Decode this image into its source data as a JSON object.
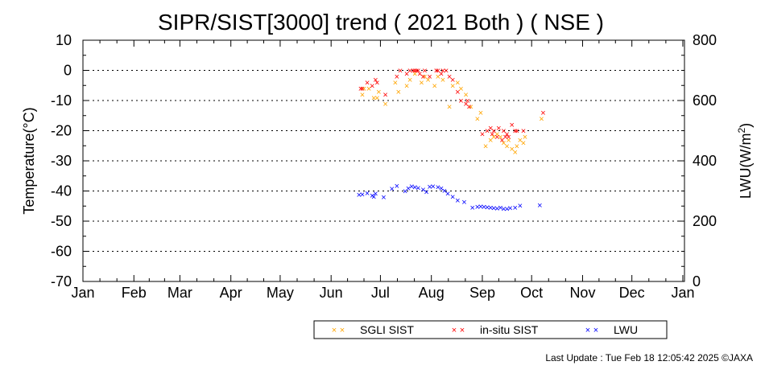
{
  "chart_data": {
    "type": "scatter",
    "title": "SIPR/SIST[3000] trend ( 2021 Both ) ( NSE )",
    "ylabel": "Temperature(°C)",
    "y2label_main": "LWU(W/m",
    "y2label_sup": "2",
    "y2label_end": ")",
    "xlabel": "",
    "ylim": [
      -70,
      10
    ],
    "yticks": [
      10,
      0,
      -10,
      -20,
      -30,
      -40,
      -50,
      -60,
      -70
    ],
    "y2lim": [
      0,
      800
    ],
    "y2ticks": [
      800,
      600,
      400,
      200,
      0
    ],
    "x_range_days": [
      0,
      366
    ],
    "month_labels": [
      "Jan",
      "Feb",
      "Mar",
      "Apr",
      "May",
      "Jun",
      "Jul",
      "Aug",
      "Sep",
      "Oct",
      "Nov",
      "Dec",
      "Jan"
    ],
    "month_days": [
      0,
      31,
      59,
      90,
      120,
      151,
      181,
      212,
      243,
      273,
      304,
      334,
      365
    ],
    "grid": "dotted-horizontal",
    "legend_position": "bottom-right",
    "series": [
      {
        "name": "SGLI SIST",
        "color": "#ffa500",
        "axis": "left",
        "points": [
          [
            170,
            -8
          ],
          [
            171,
            -6
          ],
          [
            174,
            -6
          ],
          [
            177,
            -9
          ],
          [
            179,
            -9
          ],
          [
            180,
            -7
          ],
          [
            184,
            -11
          ],
          [
            190,
            -4
          ],
          [
            192,
            -7
          ],
          [
            197,
            -5
          ],
          [
            199,
            -3
          ],
          [
            202,
            -1
          ],
          [
            206,
            -4
          ],
          [
            208,
            -2
          ],
          [
            210,
            -3
          ],
          [
            214,
            -5
          ],
          [
            216,
            -2
          ],
          [
            219,
            -3
          ],
          [
            223,
            -12
          ],
          [
            225,
            -5
          ],
          [
            228,
            -4
          ],
          [
            230,
            -6
          ],
          [
            233,
            -8
          ],
          [
            236,
            -12
          ],
          [
            240,
            -16
          ],
          [
            242,
            -14
          ],
          [
            245,
            -25
          ],
          [
            248,
            -23
          ],
          [
            250,
            -22
          ],
          [
            252,
            -21
          ],
          [
            254,
            -22
          ],
          [
            256,
            -24
          ],
          [
            258,
            -25
          ],
          [
            259,
            -23
          ],
          [
            261,
            -26
          ],
          [
            263,
            -27
          ],
          [
            264,
            -25
          ],
          [
            266,
            -23
          ],
          [
            268,
            -24
          ],
          [
            269,
            -22
          ],
          [
            279,
            -16
          ]
        ]
      },
      {
        "name": "in-situ SIST",
        "color": "#ff0000",
        "axis": "left",
        "points": [
          [
            169,
            -6
          ],
          [
            170,
            -6
          ],
          [
            173,
            -4
          ],
          [
            176,
            -5
          ],
          [
            178,
            -3
          ],
          [
            179,
            -4
          ],
          [
            184,
            -8
          ],
          [
            191,
            -2
          ],
          [
            193,
            0
          ],
          [
            197,
            -1
          ],
          [
            199,
            0
          ],
          [
            201,
            0
          ],
          [
            202,
            0
          ],
          [
            203,
            0
          ],
          [
            204,
            0
          ],
          [
            205,
            -1
          ],
          [
            207,
            -2
          ],
          [
            208,
            0
          ],
          [
            211,
            -2
          ],
          [
            215,
            0
          ],
          [
            216,
            0
          ],
          [
            218,
            -1
          ],
          [
            219,
            0
          ],
          [
            221,
            0
          ],
          [
            223,
            -2
          ],
          [
            225,
            -3
          ],
          [
            228,
            -7
          ],
          [
            230,
            -10
          ],
          [
            233,
            -11
          ],
          [
            234,
            -10
          ],
          [
            235,
            -12
          ],
          [
            243,
            -21
          ],
          [
            246,
            -20
          ],
          [
            248,
            -19
          ],
          [
            249,
            -21
          ],
          [
            250,
            -20
          ],
          [
            252,
            -22
          ],
          [
            253,
            -19
          ],
          [
            255,
            -23
          ],
          [
            256,
            -20
          ],
          [
            257,
            -22
          ],
          [
            258,
            -21
          ],
          [
            259,
            -22
          ],
          [
            261,
            -18
          ],
          [
            263,
            -20
          ],
          [
            264,
            -20
          ],
          [
            268,
            -20
          ],
          [
            280,
            -14
          ]
        ]
      },
      {
        "name": "LWU",
        "color": "#0000ff",
        "axis": "right",
        "points": [
          [
            168,
            288
          ],
          [
            170,
            290
          ],
          [
            173,
            294
          ],
          [
            176,
            286
          ],
          [
            177,
            281
          ],
          [
            178,
            292
          ],
          [
            183,
            280
          ],
          [
            188,
            308
          ],
          [
            191,
            317
          ],
          [
            196,
            300
          ],
          [
            198,
            309
          ],
          [
            200,
            316
          ],
          [
            202,
            314
          ],
          [
            204,
            311
          ],
          [
            207,
            306
          ],
          [
            209,
            298
          ],
          [
            211,
            315
          ],
          [
            213,
            316
          ],
          [
            216,
            314
          ],
          [
            218,
            310
          ],
          [
            220,
            302
          ],
          [
            222,
            292
          ],
          [
            225,
            282
          ],
          [
            228,
            270
          ],
          [
            232,
            264
          ],
          [
            237,
            245
          ],
          [
            240,
            248
          ],
          [
            242,
            249
          ],
          [
            244,
            248
          ],
          [
            246,
            247
          ],
          [
            248,
            245
          ],
          [
            250,
            244
          ],
          [
            252,
            243
          ],
          [
            254,
            246
          ],
          [
            256,
            241
          ],
          [
            258,
            242
          ],
          [
            260,
            244
          ],
          [
            263,
            245
          ],
          [
            266,
            252
          ],
          [
            278,
            254
          ]
        ]
      }
    ],
    "footer": "Last Update : Tue Feb 18 12:05:42 2025  ©JAXA"
  }
}
